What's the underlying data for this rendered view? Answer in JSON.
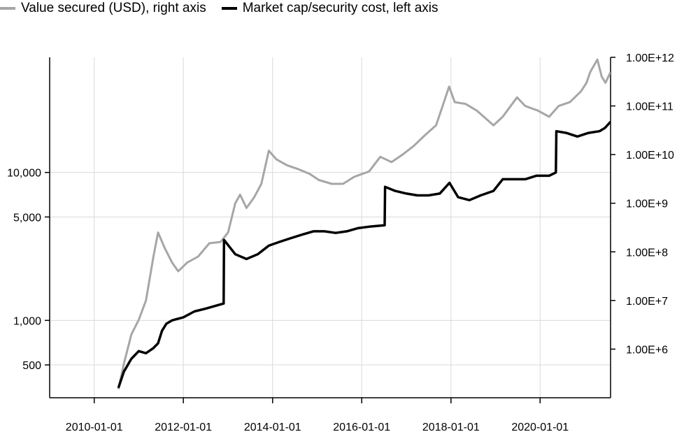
{
  "legend": {
    "items": [
      {
        "label": "Value secured (USD), right axis",
        "color": "#a6a6a6"
      },
      {
        "label": "Market cap/security cost, left axis",
        "color": "#000000"
      }
    ]
  },
  "chart_data": {
    "type": "line",
    "title": "",
    "xlabel": "",
    "ylabel_left": "",
    "ylabel_right": "",
    "grid": true,
    "legend_position": "top-left",
    "x_ticks": [
      "2010-01-01",
      "2012-01-01",
      "2014-01-01",
      "2016-01-01",
      "2018-01-01",
      "2020-01-01"
    ],
    "x_range": [
      "2009-01-01",
      "2021-07-31"
    ],
    "y_left": {
      "scale": "log",
      "range": [
        300,
        60000
      ],
      "ticks": [
        500,
        1000,
        5000,
        10000
      ],
      "tick_labels": [
        "500",
        "1,000",
        "5,000",
        "10,000"
      ]
    },
    "y_right": {
      "scale": "log",
      "range": [
        100000,
        1000000000000
      ],
      "ticks": [
        1000000,
        10000000,
        100000000,
        1000000000,
        10000000000,
        100000000000,
        1000000000000
      ],
      "tick_labels": [
        "1.00E+6",
        "1.00E+7",
        "1.00E+8",
        "1.00E+9",
        "1.00E+10",
        "1.00E+11",
        "1.00E+12"
      ]
    },
    "series": [
      {
        "name": "Value secured (USD), right axis",
        "axis": "right",
        "color": "#a6a6a6",
        "x": [
          "2010-07-18",
          "2010-09-01",
          "2010-11-01",
          "2011-01-01",
          "2011-03-01",
          "2011-05-01",
          "2011-06-08",
          "2011-08-01",
          "2011-10-01",
          "2011-11-20",
          "2012-02-01",
          "2012-05-01",
          "2012-08-01",
          "2012-11-01",
          "2013-01-01",
          "2013-03-01",
          "2013-04-10",
          "2013-06-01",
          "2013-08-01",
          "2013-10-01",
          "2013-12-01",
          "2014-02-01",
          "2014-05-01",
          "2014-08-01",
          "2014-11-01",
          "2015-01-15",
          "2015-05-01",
          "2015-08-01",
          "2015-11-01",
          "2016-03-01",
          "2016-06-01",
          "2016-09-01",
          "2016-12-01",
          "2017-03-01",
          "2017-06-01",
          "2017-09-01",
          "2017-12-17",
          "2018-02-01",
          "2018-05-01",
          "2018-08-01",
          "2018-12-15",
          "2019-03-01",
          "2019-06-26",
          "2019-09-01",
          "2019-12-15",
          "2020-03-15",
          "2020-06-01",
          "2020-09-01",
          "2020-12-01",
          "2021-01-15",
          "2021-02-15",
          "2021-04-14",
          "2021-05-20",
          "2021-06-20",
          "2021-07-31"
        ],
        "y": [
          150000,
          500000,
          2000000,
          4000000,
          10000000,
          80000000,
          250000000,
          120000000,
          60000000,
          40000000,
          60000000,
          80000000,
          150000000,
          160000000,
          250000000,
          1000000000,
          1500000000,
          800000000,
          1300000000,
          2500000000,
          12000000000,
          8000000000,
          6000000000,
          5000000000,
          4000000000,
          3000000000,
          2500000000,
          2500000000,
          3500000000,
          4500000000,
          9000000000,
          7000000000,
          10000000000,
          15000000000,
          25000000000,
          40000000000,
          250000000000,
          120000000000,
          110000000000,
          80000000000,
          40000000000,
          60000000000,
          150000000000,
          100000000000,
          80000000000,
          60000000000,
          100000000000,
          120000000000,
          200000000000,
          300000000000,
          500000000000,
          900000000000,
          400000000000,
          300000000000,
          500000000000
        ]
      },
      {
        "name": "Market cap/security cost, left axis",
        "axis": "left",
        "color": "#000000",
        "x": [
          "2010-07-18",
          "2010-09-01",
          "2010-11-01",
          "2011-01-01",
          "2011-03-01",
          "2011-05-01",
          "2011-06-08",
          "2011-07-10",
          "2011-08-15",
          "2011-10-01",
          "2012-01-01",
          "2012-04-01",
          "2012-07-01",
          "2012-11-26",
          "2012-11-29",
          "2013-03-01",
          "2013-06-01",
          "2013-09-01",
          "2013-12-01",
          "2014-03-01",
          "2014-06-01",
          "2014-09-01",
          "2014-12-01",
          "2015-03-01",
          "2015-06-01",
          "2015-09-01",
          "2015-12-01",
          "2016-03-01",
          "2016-07-07",
          "2016-07-10",
          "2016-10-01",
          "2017-01-01",
          "2017-04-01",
          "2017-07-01",
          "2017-10-01",
          "2017-12-20",
          "2018-03-01",
          "2018-06-01",
          "2018-09-01",
          "2018-12-15",
          "2019-03-01",
          "2019-06-01",
          "2019-09-01",
          "2019-12-01",
          "2020-03-15",
          "2020-05-09",
          "2020-05-13",
          "2020-08-01",
          "2020-11-01",
          "2021-02-01",
          "2021-05-01",
          "2021-06-15",
          "2021-07-31"
        ],
        "y": [
          350,
          450,
          550,
          620,
          600,
          650,
          700,
          850,
          950,
          1000,
          1050,
          1150,
          1200,
          1300,
          3500,
          2800,
          2600,
          2800,
          3200,
          3400,
          3600,
          3800,
          4000,
          4000,
          3900,
          4000,
          4200,
          4300,
          4400,
          8000,
          7500,
          7200,
          7000,
          7000,
          7200,
          8500,
          6800,
          6500,
          7000,
          7500,
          9000,
          9000,
          9000,
          9500,
          9500,
          10000,
          19000,
          18500,
          17500,
          18500,
          19000,
          20000,
          22000
        ]
      }
    ]
  }
}
